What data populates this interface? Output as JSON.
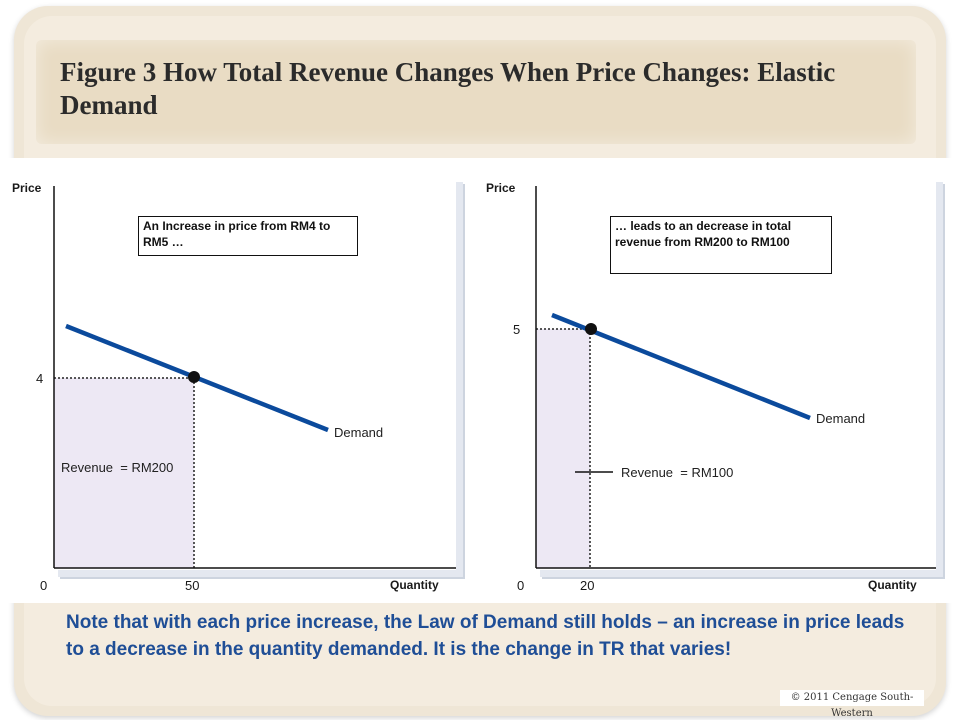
{
  "slide": {
    "title": "Figure 3 How Total Revenue Changes When Price Changes: Elastic Demand",
    "note": "Note that with each price increase, the Law of Demand still holds – an increase in price leads to a decrease in the quantity demanded.  It is the change in TR that varies!",
    "copyright": "© 2011 Cengage South-Western"
  },
  "colors": {
    "demand_line": "#0b4a9c",
    "revenue_fill": "#ede8f4",
    "note_text": "#1f4e96",
    "background_tan": "#efe6d6"
  },
  "graphs": {
    "left": {
      "y_axis_label": "Price",
      "x_axis_label": "Quantity",
      "origin_label": "0",
      "price_tick": "4",
      "quantity_tick": "50",
      "curve_label": "Demand",
      "revenue_label": "Revenue  = RM200",
      "callout": "An Increase in price from RM4 to RM5 …"
    },
    "right": {
      "y_axis_label": "Price",
      "x_axis_label": "Quantity",
      "origin_label": "0",
      "price_tick": "5",
      "quantity_tick": "20",
      "curve_label": "Demand",
      "revenue_label": "Revenue  = RM100",
      "callout": "… leads to an decrease in total revenue from RM200 to RM100"
    }
  },
  "chart_data": [
    {
      "type": "line",
      "series": [
        {
          "name": "Demand",
          "points": [
            {
              "x": 50,
              "y": 4
            }
          ]
        }
      ],
      "x": [
        0,
        50
      ],
      "xlabel": "Quantity",
      "ylabel": "Price",
      "annotations": [
        "Revenue  = RM200",
        "An Increase in price from RM4 to RM5 …"
      ]
    },
    {
      "type": "line",
      "series": [
        {
          "name": "Demand",
          "points": [
            {
              "x": 20,
              "y": 5
            }
          ]
        }
      ],
      "x": [
        0,
        20
      ],
      "xlabel": "Quantity",
      "ylabel": "Price",
      "annotations": [
        "Revenue  = RM100",
        "… leads to an decrease in total revenue from RM200 to RM100"
      ]
    }
  ]
}
